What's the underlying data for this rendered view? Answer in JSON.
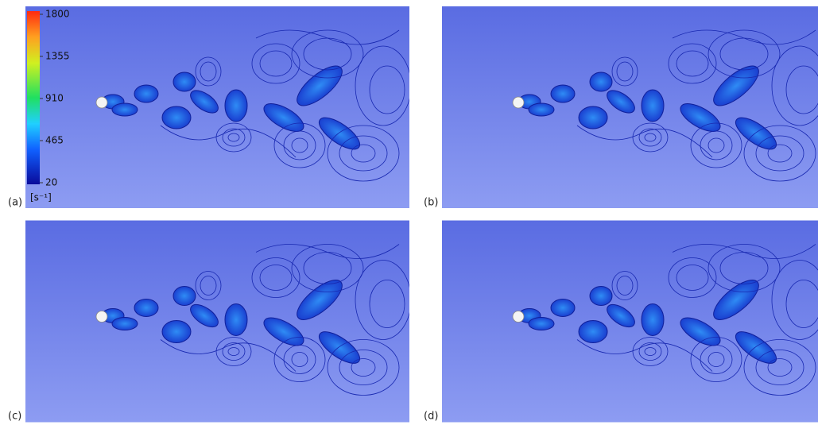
{
  "panels": [
    {
      "label": "(a)"
    },
    {
      "label": "(b)"
    },
    {
      "label": "(c)"
    },
    {
      "label": "(d)"
    }
  ],
  "colorbar": {
    "range": [
      20,
      1800
    ],
    "ticks": [
      1800,
      1355,
      910,
      465,
      20
    ],
    "unit": "[s⁻¹]"
  }
}
